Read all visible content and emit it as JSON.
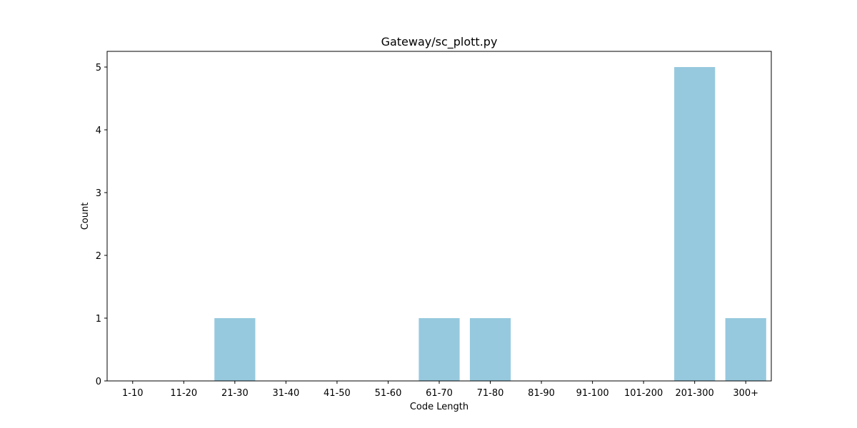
{
  "chart_data": {
    "type": "bar",
    "title": "Gateway/sc_plott.py",
    "xlabel": "Code Length",
    "ylabel": "Count",
    "categories": [
      "1-10",
      "11-20",
      "21-30",
      "31-40",
      "41-50",
      "51-60",
      "61-70",
      "71-80",
      "81-90",
      "91-100",
      "101-200",
      "201-300",
      "300+"
    ],
    "values": [
      0,
      0,
      1,
      0,
      0,
      0,
      1,
      1,
      0,
      0,
      0,
      5,
      1
    ],
    "ylim": [
      0,
      5.25
    ],
    "yticks": [
      0,
      1,
      2,
      3,
      4,
      5
    ],
    "grid": false,
    "bar_color": "#96c9de"
  }
}
